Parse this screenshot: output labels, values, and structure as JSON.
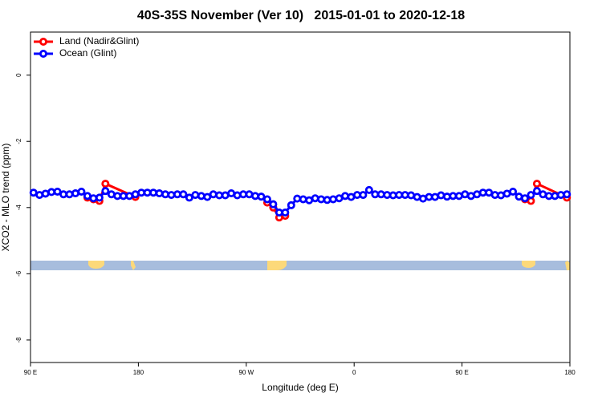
{
  "chart_data": {
    "type": "line",
    "title": "40S-35S November (Ver 10)   2015-01-01 to 2020-12-18",
    "xlabel": "Longitude (deg E)",
    "ylabel": "XCO2 - MLO trend (ppm)",
    "xlim": [
      90,
      540
    ],
    "xticks": [
      {
        "value": 90,
        "label": "90 E"
      },
      180,
      {
        "value": 270,
        "label": "90 W"
      },
      {
        "value": 360,
        "label": "0"
      },
      {
        "value": 450,
        "label": "90 E"
      },
      {
        "value": 540,
        "label": "180"
      }
    ],
    "ylim": [
      -8.68,
      1.3
    ],
    "yticks": [
      0,
      -2,
      -4,
      -6,
      -8
    ],
    "legend": "top-left",
    "series": [
      {
        "name": "Land (Nadir&Glint)",
        "color": "#ff0000",
        "x": [
          137.5,
          142.5,
          147.5,
          152.5,
          177.5,
          230,
          287.5,
          292.5,
          297.5,
          302.5,
          400,
          502.5,
          507.5,
          512.5,
          537.5
        ],
        "values": [
          -3.7,
          -3.75,
          -3.8,
          -3.28,
          -3.68,
          null,
          -3.85,
          -4.0,
          -4.3,
          -4.25,
          null,
          -3.75,
          -3.8,
          -3.28,
          -3.7
        ]
      },
      {
        "name": "Ocean (Glint)",
        "color": "#0000ff",
        "x": [
          92.5,
          97.5,
          102.5,
          107.5,
          112.5,
          117.5,
          122.5,
          127.5,
          132.5,
          137.5,
          142.5,
          147.5,
          152.5,
          157.5,
          162.5,
          167.5,
          172.5,
          177.5,
          182.5,
          187.5,
          192.5,
          197.5,
          202.5,
          207.5,
          212.5,
          217.5,
          222.5,
          227.5,
          232.5,
          237.5,
          242.5,
          247.5,
          252.5,
          257.5,
          262.5,
          267.5,
          272.5,
          277.5,
          282.5,
          287.5,
          292.5,
          297.5,
          302.5,
          307.5,
          312.5,
          317.5,
          322.5,
          327.5,
          332.5,
          337.5,
          342.5,
          347.5,
          352.5,
          357.5,
          362.5,
          367.5,
          372.5,
          377.5,
          382.5,
          387.5,
          392.5,
          397.5,
          402.5,
          407.5,
          412.5,
          417.5,
          422.5,
          427.5,
          432.5,
          437.5,
          442.5,
          447.5,
          452.5,
          457.5,
          462.5,
          467.5,
          472.5,
          477.5,
          482.5,
          487.5,
          492.5,
          497.5,
          502.5,
          507.5,
          512.5,
          517.5,
          522.5,
          527.5,
          532.5,
          537.5
        ],
        "values": [
          -3.55,
          -3.62,
          -3.58,
          -3.53,
          -3.52,
          -3.6,
          -3.6,
          -3.57,
          -3.52,
          -3.65,
          -3.72,
          -3.7,
          -3.5,
          -3.6,
          -3.65,
          -3.65,
          -3.65,
          -3.6,
          -3.55,
          -3.55,
          -3.55,
          -3.57,
          -3.6,
          -3.62,
          -3.6,
          -3.6,
          -3.7,
          -3.62,
          -3.65,
          -3.68,
          -3.6,
          -3.63,
          -3.63,
          -3.57,
          -3.63,
          -3.6,
          -3.6,
          -3.65,
          -3.67,
          -3.75,
          -3.9,
          -4.15,
          -4.15,
          -3.93,
          -3.73,
          -3.75,
          -3.78,
          -3.72,
          -3.75,
          -3.77,
          -3.75,
          -3.72,
          -3.65,
          -3.68,
          -3.62,
          -3.62,
          -3.47,
          -3.6,
          -3.6,
          -3.62,
          -3.63,
          -3.62,
          -3.62,
          -3.63,
          -3.68,
          -3.73,
          -3.68,
          -3.68,
          -3.63,
          -3.67,
          -3.65,
          -3.65,
          -3.6,
          -3.65,
          -3.6,
          -3.55,
          -3.55,
          -3.62,
          -3.63,
          -3.58,
          -3.52,
          -3.67,
          -3.72,
          -3.62,
          -3.5,
          -3.6,
          -3.65,
          -3.65,
          -3.62,
          -3.6
        ]
      }
    ]
  }
}
